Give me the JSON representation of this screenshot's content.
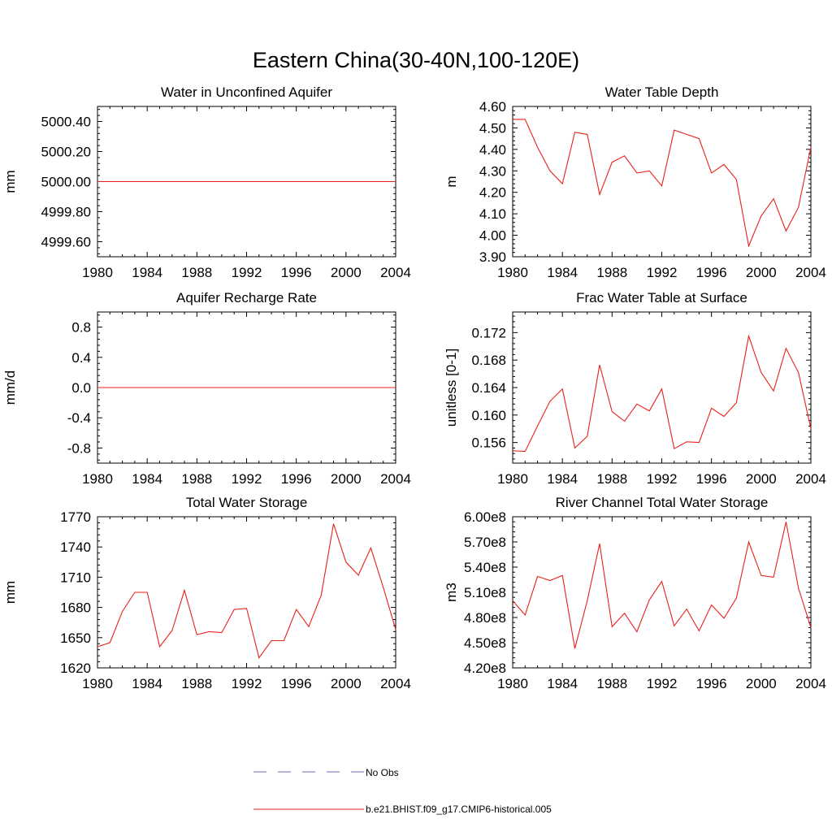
{
  "figure_title": "Eastern China(30-40N,100-120E)",
  "legend": {
    "entries": [
      {
        "label": "No Obs",
        "color": "#6a6ab0",
        "style": "dashed"
      },
      {
        "label": "b.e21.BHIST.f09_g17.CMIP6-historical.005",
        "color": "#e8201a",
        "style": "solid"
      }
    ]
  },
  "chart_data": [
    {
      "type": "line",
      "title": "Water in Unconfined Aquifer",
      "ylabel": "mm",
      "xlim": [
        1980,
        2004
      ],
      "ylim": [
        4999.5,
        5000.5
      ],
      "xticks": [
        "1980",
        "1984",
        "1988",
        "1992",
        "1996",
        "2000",
        "2004"
      ],
      "yticks": [
        "4999.60",
        "4999.80",
        "5000.00",
        "5000.20",
        "5000.40"
      ],
      "series": [
        {
          "color": "#e8201a",
          "x": [
            1980,
            1981,
            1982,
            1983,
            1984,
            1985,
            1986,
            1987,
            1988,
            1989,
            1990,
            1991,
            1992,
            1993,
            1994,
            1995,
            1996,
            1997,
            1998,
            1999,
            2000,
            2001,
            2002,
            2003,
            2004
          ],
          "y": [
            5000,
            5000,
            5000,
            5000,
            5000,
            5000,
            5000,
            5000,
            5000,
            5000,
            5000,
            5000,
            5000,
            5000,
            5000,
            5000,
            5000,
            5000,
            5000,
            5000,
            5000,
            5000,
            5000,
            5000,
            5000
          ]
        }
      ]
    },
    {
      "type": "line",
      "title": "Water Table Depth",
      "ylabel": "m",
      "xlim": [
        1980,
        2004
      ],
      "ylim": [
        3.9,
        4.6
      ],
      "xticks": [
        "1980",
        "1984",
        "1988",
        "1992",
        "1996",
        "2000",
        "2004"
      ],
      "yticks": [
        "3.90",
        "4.00",
        "4.10",
        "4.20",
        "4.30",
        "4.40",
        "4.50",
        "4.60"
      ],
      "series": [
        {
          "color": "#e8201a",
          "x": [
            1980,
            1981,
            1982,
            1983,
            1984,
            1985,
            1986,
            1987,
            1988,
            1989,
            1990,
            1991,
            1992,
            1993,
            1994,
            1995,
            1996,
            1997,
            1998,
            1999,
            2000,
            2001,
            2002,
            2003,
            2004
          ],
          "y": [
            4.54,
            4.54,
            4.41,
            4.3,
            4.24,
            4.48,
            4.47,
            4.19,
            4.34,
            4.37,
            4.29,
            4.3,
            4.23,
            4.49,
            4.47,
            4.45,
            4.29,
            4.33,
            4.26,
            3.95,
            4.09,
            4.17,
            4.02,
            4.13,
            4.41
          ]
        }
      ]
    },
    {
      "type": "line",
      "title": "Aquifer Recharge Rate",
      "ylabel": "mm/d",
      "xlim": [
        1980,
        2004
      ],
      "ylim": [
        -1.0,
        1.0
      ],
      "xticks": [
        "1980",
        "1984",
        "1988",
        "1992",
        "1996",
        "2000",
        "2004"
      ],
      "yticks": [
        "-0.8",
        "-0.4",
        "0.0",
        "0.4",
        "0.8"
      ],
      "series": [
        {
          "color": "#e8201a",
          "x": [
            1980,
            1981,
            1982,
            1983,
            1984,
            1985,
            1986,
            1987,
            1988,
            1989,
            1990,
            1991,
            1992,
            1993,
            1994,
            1995,
            1996,
            1997,
            1998,
            1999,
            2000,
            2001,
            2002,
            2003,
            2004
          ],
          "y": [
            0,
            0,
            0,
            0,
            0,
            0,
            0,
            0,
            0,
            0,
            0,
            0,
            0,
            0,
            0,
            0,
            0,
            0,
            0,
            0,
            0,
            0,
            0,
            0,
            0
          ]
        }
      ]
    },
    {
      "type": "line",
      "title": "Frac Water Table at Surface",
      "ylabel": "unitless [0-1]",
      "xlim": [
        1980,
        2004
      ],
      "ylim": [
        0.153,
        0.175
      ],
      "xticks": [
        "1980",
        "1984",
        "1988",
        "1992",
        "1996",
        "2000",
        "2004"
      ],
      "yticks": [
        "0.156",
        "0.160",
        "0.164",
        "0.168",
        "0.172"
      ],
      "series": [
        {
          "color": "#e8201a",
          "x": [
            1980,
            1981,
            1982,
            1983,
            1984,
            1985,
            1986,
            1987,
            1988,
            1989,
            1990,
            1991,
            1992,
            1993,
            1994,
            1995,
            1996,
            1997,
            1998,
            1999,
            2000,
            2001,
            2002,
            2003,
            2004
          ],
          "y": [
            0.1548,
            0.1547,
            0.1584,
            0.162,
            0.1638,
            0.1552,
            0.1569,
            0.1673,
            0.1605,
            0.1591,
            0.1616,
            0.1606,
            0.1638,
            0.1551,
            0.1561,
            0.156,
            0.161,
            0.1598,
            0.1618,
            0.1715,
            0.1662,
            0.1635,
            0.1697,
            0.1662,
            0.158
          ]
        }
      ]
    },
    {
      "type": "line",
      "title": "Total Water Storage",
      "ylabel": "mm",
      "xlim": [
        1980,
        2004
      ],
      "ylim": [
        1620,
        1770
      ],
      "xticks": [
        "1980",
        "1984",
        "1988",
        "1992",
        "1996",
        "2000",
        "2004"
      ],
      "yticks": [
        "1620",
        "1650",
        "1680",
        "1710",
        "1740",
        "1770"
      ],
      "series": [
        {
          "color": "#e8201a",
          "x": [
            1980,
            1981,
            1982,
            1983,
            1984,
            1985,
            1986,
            1987,
            1988,
            1989,
            1990,
            1991,
            1992,
            1993,
            1994,
            1995,
            1996,
            1997,
            1998,
            1999,
            2000,
            2001,
            2002,
            2003,
            2004
          ],
          "y": [
            1641,
            1645,
            1676,
            1695,
            1695,
            1641,
            1657,
            1697,
            1653,
            1656,
            1655,
            1678,
            1679,
            1630,
            1647,
            1647,
            1678,
            1661,
            1692,
            1763,
            1725,
            1712,
            1739,
            1700,
            1658
          ]
        }
      ]
    },
    {
      "type": "line",
      "title": "River Channel Total Water Storage",
      "ylabel": "m3",
      "xlim": [
        1980,
        2004
      ],
      "ylim": [
        420000000,
        600000000
      ],
      "xticks": [
        "1980",
        "1984",
        "1988",
        "1992",
        "1996",
        "2000",
        "2004"
      ],
      "yticks": [
        "4.20e8",
        "4.50e8",
        "4.80e8",
        "5.10e8",
        "5.40e8",
        "5.70e8",
        "6.00e8"
      ],
      "series": [
        {
          "color": "#e8201a",
          "x": [
            1980,
            1981,
            1982,
            1983,
            1984,
            1985,
            1986,
            1987,
            1988,
            1989,
            1990,
            1991,
            1992,
            1993,
            1994,
            1995,
            1996,
            1997,
            1998,
            1999,
            2000,
            2001,
            2002,
            2003,
            2004
          ],
          "y": [
            500000000,
            483000000,
            529000000,
            524000000,
            530000000,
            443000000,
            500000000,
            568000000,
            469000000,
            485000000,
            463000000,
            501000000,
            523000000,
            470000000,
            490000000,
            464000000,
            495000000,
            479000000,
            503000000,
            570000000,
            530000000,
            528000000,
            594000000,
            515000000,
            468000000
          ]
        }
      ]
    }
  ]
}
